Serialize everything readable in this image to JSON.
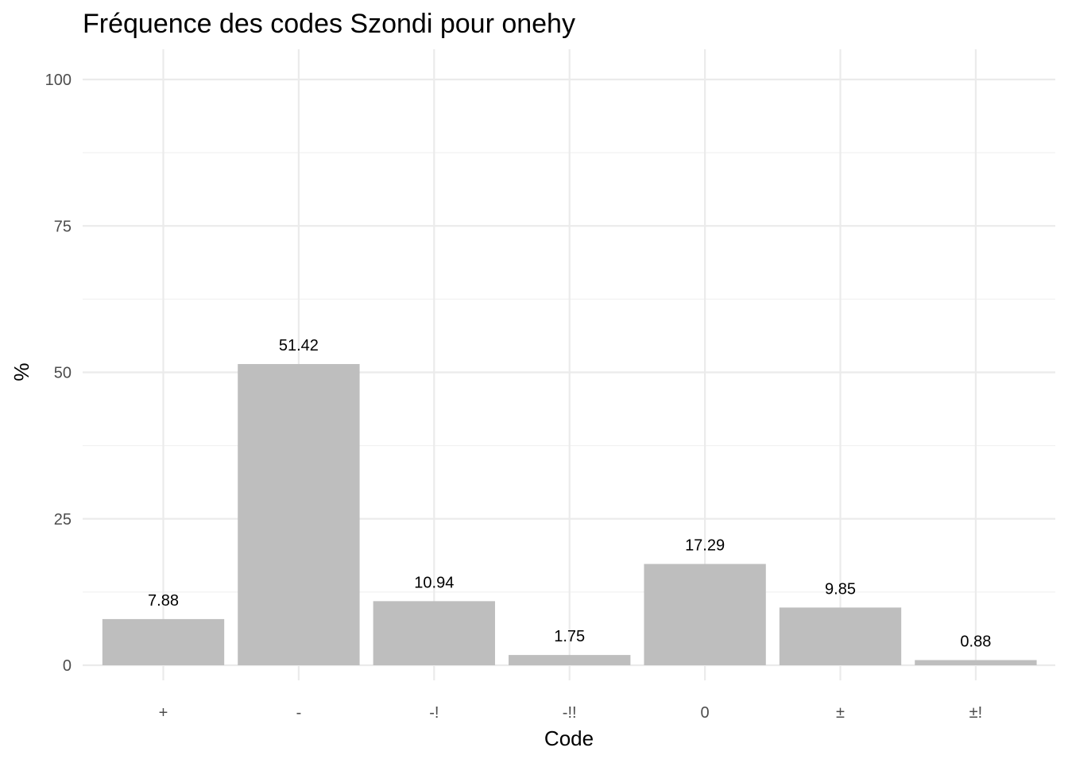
{
  "chart_data": {
    "type": "bar",
    "title": "Fréquence des codes Szondi pour onehy",
    "xlabel": "Code",
    "ylabel": "%",
    "categories": [
      "+",
      "-",
      "-!",
      "-!!",
      "0",
      "±",
      "±!"
    ],
    "values": [
      7.88,
      51.42,
      10.94,
      1.75,
      17.29,
      9.85,
      0.88
    ],
    "data_labels": [
      "7.88",
      "51.42",
      "10.94",
      "1.75",
      "17.29",
      "9.85",
      "0.88"
    ],
    "ylim": [
      0,
      100
    ],
    "yticks": [
      0,
      25,
      50,
      75,
      100
    ],
    "ytick_labels": [
      "0",
      "25",
      "50",
      "75",
      "100"
    ],
    "grid": true,
    "legend": "none",
    "colors": {
      "bar": "#bebebe",
      "grid_major": "#ebebeb",
      "grid_minor": "#f2f2f2",
      "background": "#ffffff"
    }
  }
}
